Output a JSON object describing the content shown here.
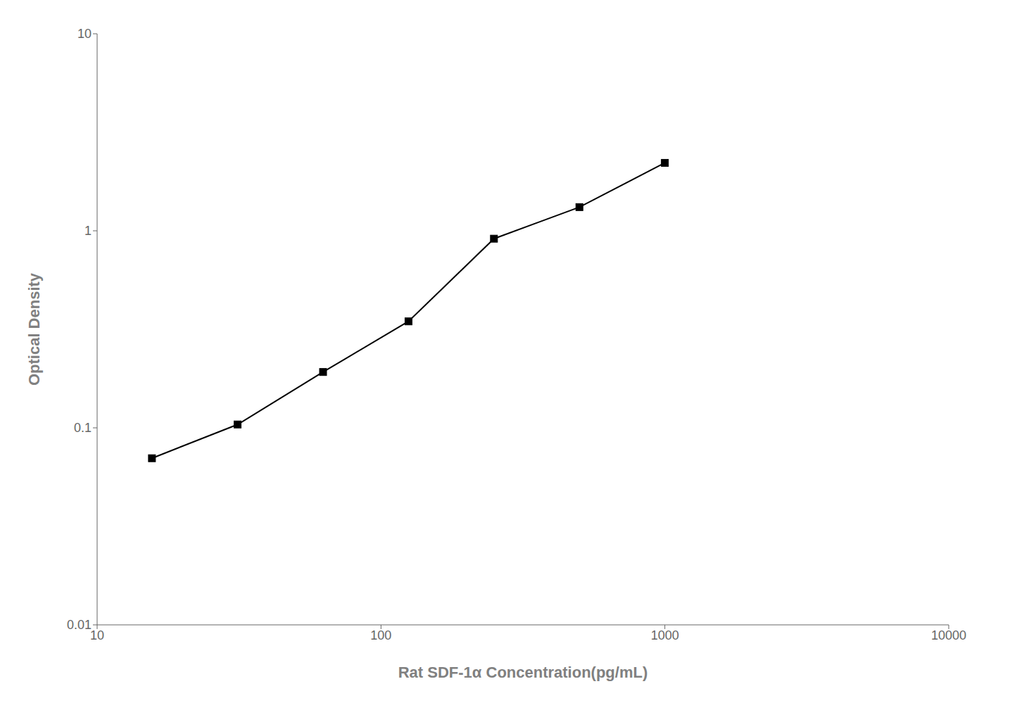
{
  "chart_data": {
    "type": "line",
    "x": [
      15.6,
      31.25,
      62.5,
      125,
      250,
      500,
      1000
    ],
    "values": [
      0.0701,
      0.104,
      0.192,
      0.347,
      0.912,
      1.319,
      2.212
    ],
    "xlabel": "Rat SDF-1α Concentration(pg/mL)",
    "ylabel": "Optical Density",
    "xlim": [
      10,
      10000
    ],
    "ylim": [
      0.01,
      10
    ],
    "xticks": [
      10,
      100,
      1000,
      10000
    ],
    "yticks": [
      0.01,
      0.1,
      1,
      10
    ],
    "log": true,
    "color": "#000000",
    "marker": "square",
    "grid": false
  }
}
